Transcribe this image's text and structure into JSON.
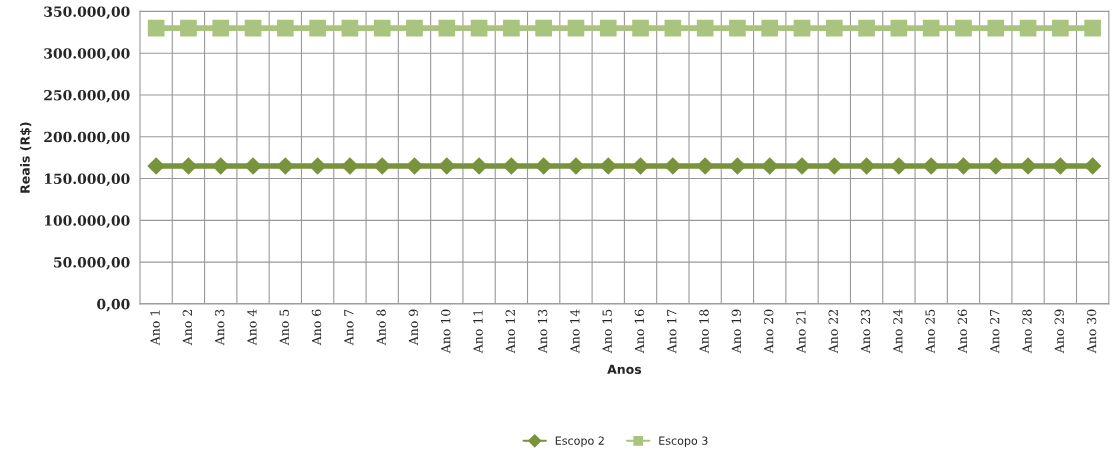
{
  "chart_data": {
    "type": "line",
    "xlabel": "Anos",
    "ylabel": "Reais (R$)",
    "categories": [
      "Ano 1",
      "Ano 2",
      "Ano 3",
      "Ano 4",
      "Ano 5",
      "Ano 6",
      "Ano 7",
      "Ano 8",
      "Ano 9",
      "Ano 10",
      "Ano 11",
      "Ano 12",
      "Ano 13",
      "Ano 14",
      "Ano 15",
      "Ano 16",
      "Ano 17",
      "Ano 18",
      "Ano 19",
      "Ano 20",
      "Ano 21",
      "Ano 22",
      "Ano 23",
      "Ano 24",
      "Ano 25",
      "Ano 26",
      "Ano 27",
      "Ano 28",
      "Ano 29",
      "Ano 30"
    ],
    "series": [
      {
        "name": "Escopo 2",
        "color": "#77933c",
        "marker": "diamond",
        "values": [
          165000,
          165000,
          165000,
          165000,
          165000,
          165000,
          165000,
          165000,
          165000,
          165000,
          165000,
          165000,
          165000,
          165000,
          165000,
          165000,
          165000,
          165000,
          165000,
          165000,
          165000,
          165000,
          165000,
          165000,
          165000,
          165000,
          165000,
          165000,
          165000,
          165000
        ]
      },
      {
        "name": "Escopo 3",
        "color": "#a9c47f",
        "marker": "square",
        "values": [
          330000,
          330000,
          330000,
          330000,
          330000,
          330000,
          330000,
          330000,
          330000,
          330000,
          330000,
          330000,
          330000,
          330000,
          330000,
          330000,
          330000,
          330000,
          330000,
          330000,
          330000,
          330000,
          330000,
          330000,
          330000,
          330000,
          330000,
          330000,
          330000,
          330000
        ]
      }
    ],
    "ylim": [
      0,
      350000
    ],
    "yticks": [
      {
        "value": 0,
        "label": "0,00"
      },
      {
        "value": 50000,
        "label": "50.000,00"
      },
      {
        "value": 100000,
        "label": "100.000,00"
      },
      {
        "value": 150000,
        "label": "150.000,00"
      },
      {
        "value": 200000,
        "label": "200.000,00"
      },
      {
        "value": 250000,
        "label": "250.000,00"
      },
      {
        "value": 300000,
        "label": "300.000,00"
      },
      {
        "value": 350000,
        "label": "350.000,00"
      }
    ],
    "grid": true,
    "legend": "bottom",
    "line_style": "solid"
  }
}
